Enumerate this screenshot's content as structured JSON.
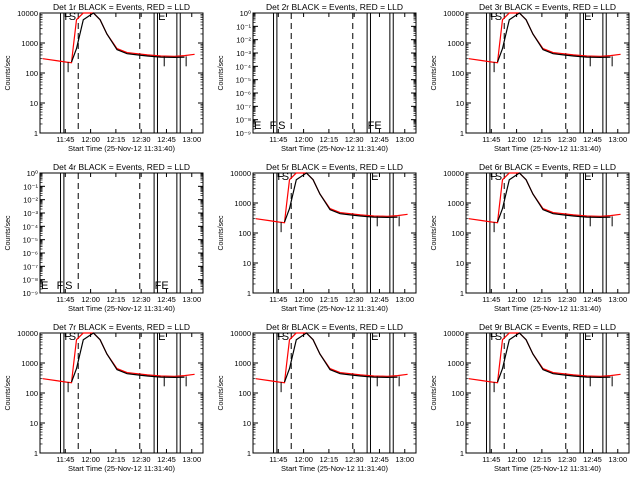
{
  "colors": {
    "events": "#000000",
    "lld": "#ff0000",
    "background": "#ffffff"
  },
  "chart_data": [
    {
      "type": "line",
      "title": "Det 1r BLACK = Events, RED = LLD",
      "xlabel": "Start Time (25-Nov-12 11:31:40)",
      "ylabel": "Counts/sec",
      "y_scale": "log",
      "y_ticks": [
        "1",
        "10",
        "100",
        "1000",
        "10000"
      ],
      "ylim": [
        1,
        10000
      ],
      "x_ticks": [
        "11:45",
        "12:00",
        "12:15",
        "12:30",
        "12:45",
        "13:00"
      ],
      "xlim_minutes": [
        -1.67,
        95
      ],
      "series": [
        {
          "name": "LLD",
          "x": [
            0,
            8,
            14,
            17,
            18,
            20,
            24,
            30,
            34,
            38,
            44,
            50,
            56,
            62,
            70,
            78,
            84,
            90
          ],
          "y": [
            300,
            260,
            230,
            220,
            700,
            6000,
            10000,
            10000,
            6000,
            2000,
            650,
            480,
            440,
            400,
            370,
            360,
            380,
            420
          ]
        },
        {
          "name": "Events",
          "x": [
            17,
            20,
            24,
            30,
            34,
            38,
            44,
            50,
            56,
            62,
            70,
            78,
            84
          ],
          "y": [
            230,
            650,
            6000,
            10000,
            6000,
            2000,
            600,
            440,
            400,
            370,
            340,
            330,
            340
          ]
        }
      ],
      "markers": [
        "F",
        "S",
        "E"
      ]
    },
    {
      "type": "line",
      "title": "Det 2r BLACK = Events, RED = LLD",
      "xlabel": "Start Time (25-Nov-12 11:31:40)",
      "ylabel": "Counts/sec",
      "y_scale": "log",
      "y_ticks": [
        "10⁻⁹",
        "10⁻⁸",
        "10⁻⁷",
        "10⁻⁶",
        "10⁻⁵",
        "10⁻⁴",
        "10⁻³",
        "10⁻²",
        "10⁻¹",
        "10⁰"
      ],
      "x_ticks": [
        "11:45",
        "12:00",
        "12:15",
        "12:30",
        "12:45",
        "13:00"
      ],
      "xlim_minutes": [
        -1.67,
        95
      ],
      "series": [],
      "markers": [
        "E",
        "F",
        "S",
        "FE"
      ]
    },
    {
      "type": "line",
      "title": "Det 3r BLACK = Events, RED = LLD",
      "xlabel": "Start Time (25-Nov-12 11:31:40)",
      "ylabel": "Counts/sec",
      "y_scale": "log",
      "y_ticks": [
        "1",
        "10",
        "100",
        "1000",
        "10000"
      ],
      "ylim": [
        1,
        10000
      ],
      "x_ticks": [
        "11:45",
        "12:00",
        "12:15",
        "12:30",
        "12:45",
        "13:00"
      ],
      "xlim_minutes": [
        -1.67,
        95
      ],
      "series": [
        {
          "name": "LLD",
          "x": [
            0,
            8,
            14,
            17,
            18,
            20,
            24,
            30,
            34,
            38,
            44,
            50,
            56,
            62,
            70,
            78,
            84,
            90
          ],
          "y": [
            300,
            260,
            230,
            220,
            700,
            6000,
            10000,
            10000,
            6000,
            2000,
            650,
            480,
            440,
            400,
            370,
            360,
            380,
            420
          ]
        },
        {
          "name": "Events",
          "x": [
            17,
            20,
            24,
            30,
            34,
            38,
            44,
            50,
            56,
            62,
            70,
            78,
            84
          ],
          "y": [
            230,
            650,
            6000,
            10000,
            6000,
            2000,
            600,
            440,
            400,
            370,
            340,
            330,
            340
          ]
        }
      ],
      "markers": [
        "F",
        "S",
        "E"
      ]
    },
    {
      "type": "line",
      "title": "Det 4r BLACK = Events, RED = LLD",
      "xlabel": "Start Time (25-Nov-12 11:31:40)",
      "ylabel": "Counts/sec",
      "y_scale": "log",
      "y_ticks": [
        "10⁻⁹",
        "10⁻⁸",
        "10⁻⁷",
        "10⁻⁶",
        "10⁻⁵",
        "10⁻⁴",
        "10⁻³",
        "10⁻²",
        "10⁻¹",
        "10⁰"
      ],
      "x_ticks": [
        "11:45",
        "12:00",
        "12:15",
        "12:30",
        "12:45",
        "13:00"
      ],
      "xlim_minutes": [
        -1.67,
        95
      ],
      "series": [],
      "markers": [
        "E",
        "F",
        "S",
        "FE"
      ]
    },
    {
      "type": "line",
      "title": "Det 5r BLACK = Events, RED = LLD",
      "xlabel": "Start Time (25-Nov-12 11:31:40)",
      "ylabel": "Counts/sec",
      "y_scale": "log",
      "y_ticks": [
        "1",
        "10",
        "100",
        "1000",
        "10000"
      ],
      "ylim": [
        1,
        10000
      ],
      "x_ticks": [
        "11:45",
        "12:00",
        "12:15",
        "12:30",
        "12:45",
        "13:00"
      ],
      "xlim_minutes": [
        -1.67,
        95
      ],
      "series": [
        {
          "name": "LLD",
          "x": [
            0,
            8,
            14,
            17,
            18,
            20,
            24,
            30,
            34,
            38,
            44,
            50,
            56,
            62,
            70,
            78,
            84,
            90
          ],
          "y": [
            300,
            260,
            230,
            220,
            700,
            6000,
            10000,
            10000,
            6000,
            2000,
            650,
            480,
            440,
            400,
            370,
            360,
            380,
            420
          ]
        },
        {
          "name": "Events",
          "x": [
            17,
            20,
            24,
            30,
            34,
            38,
            44,
            50,
            56,
            62,
            70,
            78,
            84
          ],
          "y": [
            230,
            650,
            6000,
            10000,
            6000,
            2000,
            600,
            440,
            400,
            370,
            340,
            330,
            340
          ]
        }
      ],
      "markers": [
        "F",
        "S",
        "E"
      ]
    },
    {
      "type": "line",
      "title": "Det 6r BLACK = Events, RED = LLD",
      "xlabel": "Start Time (25-Nov-12 11:31:40)",
      "ylabel": "Counts/sec",
      "y_scale": "log",
      "y_ticks": [
        "1",
        "10",
        "100",
        "1000",
        "10000"
      ],
      "ylim": [
        1,
        10000
      ],
      "x_ticks": [
        "11:45",
        "12:00",
        "12:15",
        "12:30",
        "12:45",
        "13:00"
      ],
      "xlim_minutes": [
        -1.67,
        95
      ],
      "series": [
        {
          "name": "LLD",
          "x": [
            0,
            8,
            14,
            17,
            18,
            20,
            24,
            30,
            34,
            38,
            44,
            50,
            56,
            62,
            70,
            78,
            84,
            90
          ],
          "y": [
            300,
            260,
            230,
            220,
            700,
            6000,
            10000,
            10000,
            6000,
            2000,
            650,
            480,
            440,
            400,
            370,
            360,
            380,
            420
          ]
        },
        {
          "name": "Events",
          "x": [
            17,
            20,
            24,
            30,
            34,
            38,
            44,
            50,
            56,
            62,
            70,
            78,
            84
          ],
          "y": [
            230,
            650,
            6000,
            10000,
            6000,
            2000,
            600,
            440,
            400,
            370,
            340,
            330,
            340
          ]
        }
      ],
      "markers": [
        "F",
        "S",
        "E"
      ]
    },
    {
      "type": "line",
      "title": "Det 7r BLACK = Events, RED = LLD",
      "xlabel": "Start Time (25-Nov-12 11:31:40)",
      "ylabel": "Counts/sec",
      "y_scale": "log",
      "y_ticks": [
        "1",
        "10",
        "100",
        "1000",
        "10000"
      ],
      "ylim": [
        1,
        10000
      ],
      "x_ticks": [
        "11:45",
        "12:00",
        "12:15",
        "12:30",
        "12:45",
        "13:00"
      ],
      "xlim_minutes": [
        -1.67,
        95
      ],
      "series": [
        {
          "name": "LLD",
          "x": [
            0,
            8,
            14,
            17,
            18,
            20,
            24,
            30,
            34,
            38,
            44,
            50,
            56,
            62,
            70,
            78,
            84,
            90
          ],
          "y": [
            300,
            260,
            230,
            220,
            700,
            6000,
            10000,
            10000,
            6000,
            2000,
            650,
            480,
            440,
            400,
            370,
            360,
            380,
            420
          ]
        },
        {
          "name": "Events",
          "x": [
            17,
            20,
            24,
            30,
            34,
            38,
            44,
            50,
            56,
            62,
            70,
            78,
            84
          ],
          "y": [
            230,
            650,
            6000,
            10000,
            6000,
            2000,
            600,
            440,
            400,
            370,
            340,
            330,
            340
          ]
        }
      ],
      "markers": [
        "F",
        "S",
        "E"
      ]
    },
    {
      "type": "line",
      "title": "Det 8r BLACK = Events, RED = LLD",
      "xlabel": "Start Time (25-Nov-12 11:31:40)",
      "ylabel": "Counts/sec",
      "y_scale": "log",
      "y_ticks": [
        "1",
        "10",
        "100",
        "1000",
        "10000"
      ],
      "ylim": [
        1,
        10000
      ],
      "x_ticks": [
        "11:45",
        "12:00",
        "12:15",
        "12:30",
        "12:45",
        "13:00"
      ],
      "xlim_minutes": [
        -1.67,
        95
      ],
      "series": [
        {
          "name": "LLD",
          "x": [
            0,
            8,
            14,
            17,
            18,
            20,
            24,
            30,
            34,
            38,
            44,
            50,
            56,
            62,
            70,
            78,
            84,
            90
          ],
          "y": [
            300,
            260,
            230,
            220,
            700,
            6000,
            10000,
            10000,
            6000,
            2000,
            650,
            480,
            440,
            400,
            370,
            360,
            380,
            420
          ]
        },
        {
          "name": "Events",
          "x": [
            17,
            20,
            24,
            30,
            34,
            38,
            44,
            50,
            56,
            62,
            70,
            78,
            84
          ],
          "y": [
            230,
            650,
            6000,
            10000,
            6000,
            2000,
            600,
            440,
            400,
            370,
            340,
            330,
            340
          ]
        }
      ],
      "markers": [
        "F",
        "S",
        "E"
      ]
    },
    {
      "type": "line",
      "title": "Det 9r BLACK = Events, RED = LLD",
      "xlabel": "Start Time (25-Nov-12 11:31:40)",
      "ylabel": "Counts/sec",
      "y_scale": "log",
      "y_ticks": [
        "1",
        "10",
        "100",
        "1000",
        "10000"
      ],
      "ylim": [
        1,
        10000
      ],
      "x_ticks": [
        "11:45",
        "12:00",
        "12:15",
        "12:30",
        "12:45",
        "13:00"
      ],
      "xlim_minutes": [
        -1.67,
        95
      ],
      "series": [
        {
          "name": "LLD",
          "x": [
            0,
            8,
            14,
            17,
            18,
            20,
            24,
            30,
            34,
            38,
            44,
            50,
            56,
            62,
            70,
            78,
            84,
            90
          ],
          "y": [
            300,
            260,
            230,
            220,
            700,
            6000,
            10000,
            10000,
            6000,
            2000,
            650,
            480,
            440,
            400,
            370,
            360,
            380,
            420
          ]
        },
        {
          "name": "Events",
          "x": [
            17,
            20,
            24,
            30,
            34,
            38,
            44,
            50,
            56,
            62,
            70,
            78,
            84
          ],
          "y": [
            230,
            650,
            6000,
            10000,
            6000,
            2000,
            600,
            440,
            400,
            370,
            340,
            330,
            340
          ]
        }
      ],
      "markers": [
        "F",
        "S",
        "E"
      ]
    }
  ]
}
